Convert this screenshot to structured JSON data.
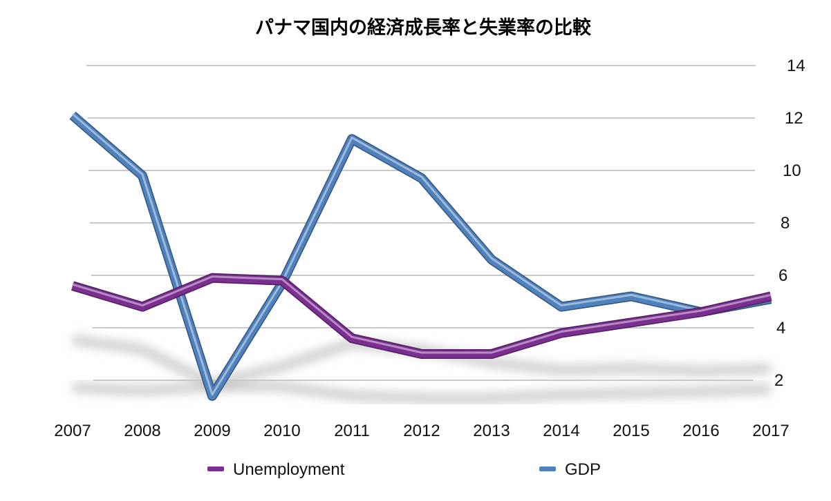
{
  "chart_data": {
    "type": "line",
    "title": "パナマ国内の経済成長率と失業率の比較",
    "xlabel": "",
    "ylabel": "",
    "categories": [
      "2007",
      "2008",
      "2009",
      "2010",
      "2011",
      "2012",
      "2013",
      "2014",
      "2015",
      "2016",
      "2017"
    ],
    "ylim": [
      2,
      14
    ],
    "yticks": [
      "2",
      "4",
      "6",
      "8",
      "10",
      "12",
      "14"
    ],
    "grid": true,
    "legend_position": "bottom",
    "series": [
      {
        "name": "Unemployment",
        "color": "#7b2f91",
        "values": [
          5.6,
          4.8,
          5.9,
          5.8,
          3.6,
          3.0,
          3.0,
          3.8,
          4.2,
          4.6,
          5.2
        ]
      },
      {
        "name": "GDP",
        "color": "#4f81bd",
        "values": [
          12.1,
          9.8,
          1.4,
          5.7,
          11.2,
          9.7,
          6.6,
          4.8,
          5.2,
          4.6,
          5.1
        ]
      }
    ]
  }
}
